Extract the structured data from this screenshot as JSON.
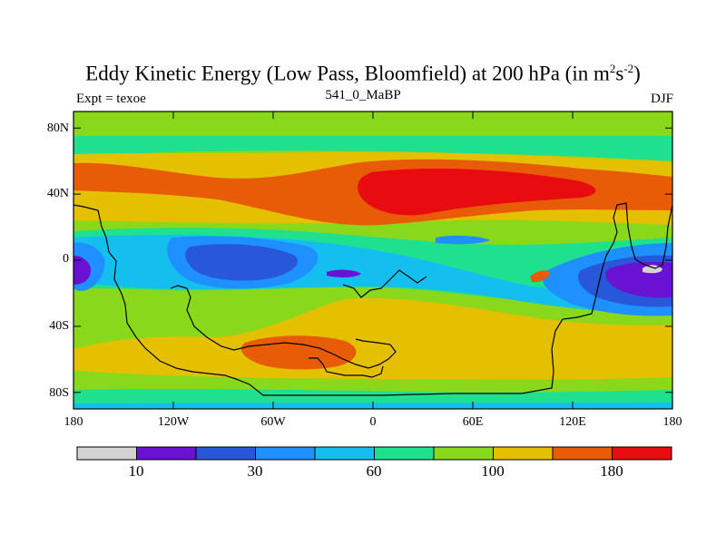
{
  "title": {
    "main": "Eddy Kinetic Energy (Low Pass, Bloomfield) at 200 hPa (in m",
    "sup1": "2",
    "mid": "s",
    "sup2": "-2",
    "end": ")"
  },
  "left_label": "Expt = texoe",
  "center_label": "541_0_MaBP",
  "right_label": "DJF",
  "map": {
    "projection": "cylindrical equidistant",
    "lat_range": [
      -90,
      90
    ],
    "lon_range": [
      -180,
      180
    ],
    "lat_ticks": [
      "80N",
      "40N",
      "0",
      "40S",
      "80S"
    ],
    "lat_tick_values": [
      80,
      40,
      0,
      -40,
      -80
    ],
    "lon_ticks": [
      "180",
      "120W",
      "60W",
      "0",
      "60E",
      "120E",
      "180"
    ],
    "lon_tick_values": [
      -180,
      -120,
      -60,
      0,
      60,
      120,
      180
    ]
  },
  "colorbar": {
    "colors": [
      "#d3d3d3",
      "#6a12d4",
      "#2857d9",
      "#1e90ff",
      "#14bfef",
      "#1ee08f",
      "#8ad81c",
      "#e4c000",
      "#e85c08",
      "#e80c10"
    ],
    "labels": [
      "10",
      "30",
      "60",
      "100",
      "180"
    ],
    "label_positions": [
      1,
      3,
      5,
      7,
      9
    ]
  }
}
